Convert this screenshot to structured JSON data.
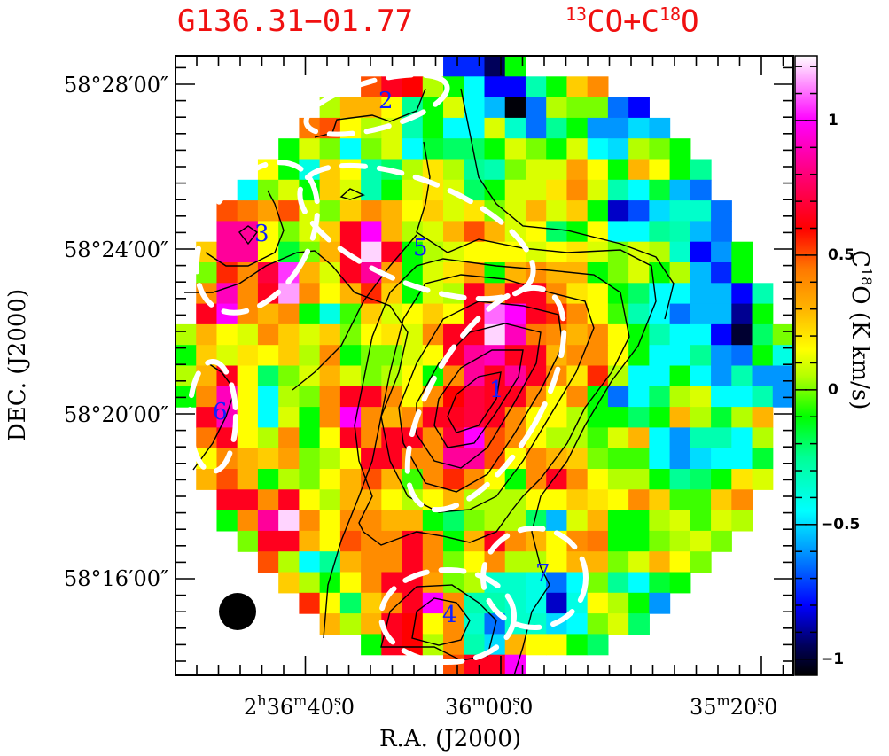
{
  "title": {
    "source": "G136.31−01.77",
    "line_base1": "13",
    "line_text1": "CO+C",
    "line_base2": "18",
    "line_text2": "O"
  },
  "colors": {
    "title": "#f01010",
    "region_label": "#1020ff",
    "region_outline": "#ffffff",
    "contour": "#000000",
    "beam": "#000000"
  },
  "chart_data": {
    "type": "heatmap",
    "title": "G136.31−01.77  13CO+C18O",
    "xlabel": "R.A. (J2000)",
    "ylabel": "DEC. (J2000)",
    "colorbar_label": {
      "base": "C",
      "sup": "18",
      "rest": "O  (K km/s)"
    },
    "x_ticks": [
      {
        "h": "2",
        "hsup": "h",
        "m": "36",
        "msup": "m",
        "s": "40",
        "ssup": "s",
        "frac": ".0"
      },
      {
        "h": "",
        "hsup": "",
        "m": "36",
        "msup": "m",
        "s": "00",
        "ssup": "s",
        "frac": ".0"
      },
      {
        "h": "",
        "hsup": "",
        "m": "35",
        "msup": "m",
        "s": "20",
        "ssup": "s",
        "frac": ".0"
      }
    ],
    "y_ticks": [
      "58°28′00″",
      "58°24′00″",
      "58°20′00″",
      "58°16′00″"
    ],
    "colorbar": {
      "range": [
        -1.06,
        1.24
      ],
      "ticks": [
        1,
        0.5,
        0,
        -0.5,
        -1
      ],
      "tick_labels": [
        "1",
        "0.5",
        "0",
        "−0.5",
        "−1"
      ]
    },
    "colormap": [
      [
        -1.06,
        "#000000"
      ],
      [
        -0.95,
        "#00005a"
      ],
      [
        -0.8,
        "#0000ff"
      ],
      [
        -0.6,
        "#0096ff"
      ],
      [
        -0.45,
        "#00ffff"
      ],
      [
        -0.25,
        "#00ff96"
      ],
      [
        -0.1,
        "#00ff00"
      ],
      [
        0.05,
        "#b4ff00"
      ],
      [
        0.15,
        "#ffff00"
      ],
      [
        0.3,
        "#ffb400"
      ],
      [
        0.45,
        "#ff7800"
      ],
      [
        0.6,
        "#ff0000"
      ],
      [
        0.8,
        "#ff0078"
      ],
      [
        1.0,
        "#ff00ff"
      ],
      [
        1.24,
        "#ffffff"
      ]
    ],
    "grid_size": [
      30,
      30
    ],
    "values": [
      [
        null,
        null,
        null,
        null,
        null,
        null,
        null,
        null,
        null,
        null,
        null,
        null,
        null,
        -0.75,
        -0.75,
        -0.95,
        -0.1,
        null,
        null,
        null,
        null,
        null,
        null,
        null,
        null,
        null,
        null,
        null,
        null,
        null
      ],
      [
        null,
        null,
        null,
        null,
        null,
        null,
        null,
        null,
        null,
        0.5,
        0.65,
        0.6,
        0.05,
        -0.1,
        -0.45,
        -0.8,
        -0.8,
        -0.3,
        -0.1,
        0.25,
        0.4,
        null,
        null,
        null,
        null,
        null,
        null,
        null,
        null,
        null
      ],
      [
        null,
        null,
        null,
        null,
        null,
        null,
        null,
        0.05,
        0.3,
        0.3,
        0.15,
        -0.25,
        -0.1,
        0.1,
        -0.45,
        -0.55,
        -1.05,
        -0.65,
        0.05,
        0.0,
        0.0,
        -0.65,
        -0.8,
        null,
        null,
        null,
        null,
        null,
        null,
        null
      ],
      [
        null,
        null,
        null,
        null,
        null,
        null,
        0.45,
        0.5,
        0.15,
        0.05,
        0.1,
        -0.3,
        -0.1,
        -0.45,
        -0.45,
        0.1,
        -0.35,
        -0.65,
        -0.25,
        -0.1,
        -0.6,
        -0.6,
        -0.5,
        -0.55,
        null,
        null,
        null,
        null,
        null,
        null
      ],
      [
        null,
        null,
        null,
        null,
        null,
        -0.1,
        0.1,
        0.0,
        -0.45,
        0.0,
        0.1,
        -0.45,
        -0.15,
        -0.2,
        -0.2,
        -0.1,
        0.1,
        0.0,
        -0.1,
        0.1,
        -0.45,
        -0.5,
        0.05,
        0.0,
        -0.1,
        null,
        null,
        null,
        null,
        null
      ],
      [
        null,
        null,
        null,
        null,
        0.15,
        -0.1,
        -0.4,
        0.25,
        0.15,
        -0.3,
        -0.2,
        0.05,
        0.2,
        0.05,
        -0.25,
        -0.3,
        0.0,
        0.1,
        0.1,
        0.35,
        0.15,
        -0.1,
        0.3,
        0.15,
        -0.1,
        -0.25,
        null,
        null,
        null,
        null
      ],
      [
        null,
        null,
        null,
        -0.45,
        0.0,
        0.1,
        -0.1,
        0.25,
        0.1,
        -0.3,
        -0.1,
        0.1,
        0.2,
        0.1,
        -0.2,
        -0.1,
        0.1,
        0.1,
        0.2,
        0.4,
        0.1,
        -0.3,
        -0.45,
        -0.15,
        -0.55,
        -0.65,
        null,
        null,
        null,
        null
      ],
      [
        null,
        null,
        0.5,
        0.45,
        0.35,
        0.5,
        0.1,
        0.0,
        0.25,
        0.4,
        0.3,
        0.15,
        0.25,
        0.1,
        0.2,
        0.0,
        0.1,
        0.3,
        0.1,
        0.25,
        -0.1,
        -0.85,
        -0.7,
        -0.5,
        -0.35,
        -0.35,
        -0.65,
        null,
        null,
        null
      ],
      [
        null,
        null,
        0.85,
        0.85,
        0.15,
        0.0,
        0.1,
        0.25,
        0.65,
        1.0,
        0.3,
        0.05,
        0.1,
        0.3,
        0.5,
        0.3,
        0.1,
        0.15,
        -0.2,
        -0.1,
        0.15,
        -0.45,
        -0.45,
        -0.25,
        -0.3,
        -0.55,
        -0.65,
        null,
        null,
        null
      ],
      [
        null,
        0.25,
        0.85,
        0.85,
        0.15,
        -0.15,
        0.0,
        0.3,
        0.65,
        1.2,
        0.65,
        -0.1,
        0.05,
        0.1,
        0.15,
        0.15,
        0.15,
        0.1,
        0.15,
        0.2,
        0.1,
        0.0,
        0.1,
        0.05,
        -0.35,
        -0.8,
        -0.6,
        -0.1,
        null,
        null
      ],
      [
        null,
        0.0,
        0.55,
        0.4,
        0.7,
        1.05,
        0.3,
        0.1,
        0.65,
        0.85,
        0.35,
        -0.1,
        0.1,
        0.2,
        0.35,
        -0.1,
        0.3,
        0.4,
        0.3,
        0.3,
        -0.1,
        0.0,
        0.1,
        -0.1,
        0.05,
        -0.55,
        -0.75,
        -0.1,
        null,
        null
      ],
      [
        null,
        0.4,
        0.9,
        0.4,
        0.65,
        1.15,
        0.4,
        0.15,
        0.3,
        0.55,
        0.25,
        -0.1,
        0.1,
        0.05,
        0.65,
        0.4,
        0.65,
        0.65,
        0.4,
        0.2,
        0.15,
        -0.1,
        -0.2,
        -0.45,
        -0.45,
        -0.55,
        -0.55,
        -0.8,
        -0.3,
        null
      ],
      [
        null,
        0.65,
        1.0,
        0.4,
        0.3,
        0.4,
        -0.1,
        -0.4,
        -0.05,
        0.25,
        0.1,
        0.15,
        0.25,
        0.15,
        0.65,
        1.1,
        1.0,
        0.65,
        0.55,
        0.4,
        0.15,
        -0.05,
        -0.3,
        -0.45,
        -0.65,
        -0.55,
        -0.55,
        -0.9,
        -0.1,
        null
      ],
      [
        0.05,
        0.3,
        0.15,
        0.1,
        0.4,
        0.25,
        0.1,
        0.25,
        0.0,
        0.15,
        0.2,
        0.1,
        0.4,
        0.65,
        0.65,
        1.2,
        0.9,
        0.45,
        0.4,
        0.3,
        0.4,
        0.15,
        -0.1,
        -0.3,
        -0.45,
        -0.45,
        -0.8,
        -1.0,
        -0.2,
        0.0
      ],
      [
        -0.1,
        0.25,
        0.1,
        0.2,
        0.15,
        0.25,
        0.05,
        0.4,
        -0.1,
        0.0,
        0.0,
        0.1,
        0.15,
        0.65,
        0.85,
        0.9,
        0.65,
        0.65,
        0.3,
        0.4,
        0.4,
        0.15,
        -0.1,
        -0.45,
        -0.45,
        -0.25,
        -0.6,
        -0.65,
        -0.1,
        -0.4
      ],
      [
        0.05,
        0.3,
        0.65,
        0.15,
        -0.2,
        0.0,
        0.1,
        0.3,
        0.1,
        0.0,
        0.05,
        0.15,
        -0.1,
        0.4,
        0.85,
        0.65,
        0.85,
        0.65,
        0.4,
        0.2,
        0.55,
        0.05,
        -0.45,
        -0.45,
        -0.1,
        -0.45,
        -0.6,
        -0.3,
        -0.6,
        -0.6
      ],
      [
        -0.1,
        0.4,
        0.9,
        0.15,
        -0.45,
        0.05,
        0.0,
        0.4,
        0.65,
        0.65,
        0.4,
        0.15,
        0.4,
        0.6,
        0.7,
        0.65,
        0.65,
        0.4,
        0.15,
        0.4,
        -0.1,
        -0.65,
        -0.45,
        -0.2,
        0.05,
        0.1,
        -0.45,
        -0.45,
        -0.3,
        -0.6
      ],
      [
        null,
        0.65,
        0.9,
        0.15,
        -0.45,
        0.1,
        -0.1,
        0.4,
        1.0,
        0.4,
        0.3,
        0.4,
        0.65,
        0.65,
        0.7,
        0.65,
        0.4,
        0.15,
        0.15,
        0.05,
        -0.1,
        -0.1,
        -0.2,
        -0.1,
        0.3,
        0.05,
        -0.15,
        0.05,
        0.3,
        null
      ],
      [
        null,
        0.45,
        0.65,
        0.15,
        0.05,
        0.4,
        -0.1,
        0.15,
        0.65,
        0.4,
        0.65,
        0.65,
        0.4,
        0.7,
        1.0,
        0.5,
        0.4,
        0.15,
        0.05,
        0.05,
        -0.05,
        0.1,
        0.3,
        -0.45,
        -0.6,
        -0.3,
        -0.3,
        -0.45,
        0.05,
        null
      ],
      [
        null,
        0.15,
        0.4,
        0.3,
        0.25,
        0.35,
        0.0,
        0.05,
        0.15,
        0.65,
        0.65,
        0.4,
        0.4,
        0.85,
        0.85,
        0.5,
        0.15,
        0.4,
        0.3,
        0.25,
        0.0,
        -0.05,
        -0.05,
        -0.45,
        -0.6,
        -0.5,
        -0.45,
        -0.45,
        -0.15,
        null
      ],
      [
        null,
        0.3,
        0.5,
        0.3,
        -0.1,
        0.05,
        0.0,
        0.15,
        0.3,
        0.5,
        0.3,
        -0.05,
        0.4,
        0.55,
        0.4,
        0.15,
        -0.1,
        0.4,
        0.65,
        0.4,
        0.15,
        0.05,
        0.05,
        -0.1,
        -0.25,
        -0.2,
        -0.1,
        0.2,
        0.1,
        null
      ],
      [
        null,
        null,
        0.65,
        0.65,
        0.4,
        0.65,
        0.15,
        0.05,
        0.3,
        0.3,
        0.15,
        0.05,
        0.15,
        0.3,
        0.05,
        0.05,
        0.05,
        0.15,
        0.15,
        0.25,
        0.2,
        0.15,
        0.4,
        0.25,
        -0.05,
        -0.05,
        0.25,
        0.4,
        null,
        null
      ],
      [
        null,
        null,
        -0.1,
        0.4,
        0.85,
        1.2,
        0.4,
        0.15,
        0.4,
        0.4,
        0.3,
        0.3,
        -0.1,
        -0.2,
        0.0,
        0.05,
        0.05,
        -0.2,
        -0.55,
        0.1,
        0.3,
        -0.1,
        -0.1,
        0.05,
        0.1,
        -0.05,
        0.1,
        0.05,
        null,
        null
      ],
      [
        null,
        null,
        null,
        0.0,
        0.65,
        0.65,
        0.3,
        0.15,
        0.5,
        0.4,
        0.4,
        0.65,
        0.4,
        -0.1,
        0.3,
        0.65,
        0.4,
        0.3,
        0.15,
        0.4,
        0.45,
        -0.1,
        -0.1,
        0.0,
        0.05,
        0.1,
        0.0,
        null,
        null,
        null
      ],
      [
        null,
        null,
        null,
        null,
        0.5,
        0.05,
        -0.45,
        -0.25,
        0.3,
        0.4,
        0.4,
        0.65,
        0.4,
        0.0,
        0.15,
        0.4,
        0.05,
        0.05,
        0.15,
        0.3,
        0.3,
        0.0,
        0.1,
        0.3,
        0.15,
        0.0,
        null,
        null,
        null,
        null
      ],
      [
        null,
        null,
        null,
        null,
        null,
        0.25,
        0.05,
        -0.1,
        0.15,
        0.4,
        0.65,
        0.65,
        0.35,
        0.0,
        0.05,
        -0.35,
        -0.35,
        -0.4,
        -0.65,
        -0.45,
        0.0,
        -0.25,
        -0.45,
        -0.15,
        -0.1,
        null,
        null,
        null,
        null,
        null
      ],
      [
        null,
        null,
        null,
        null,
        null,
        null,
        0.55,
        0.15,
        -0.2,
        0.25,
        0.4,
        0.65,
        1.0,
        0.4,
        -0.3,
        -0.3,
        -0.35,
        -0.4,
        -0.85,
        -0.4,
        0.15,
        0.05,
        -0.1,
        -0.6,
        null,
        null,
        null,
        null,
        null,
        null
      ],
      [
        null,
        null,
        null,
        null,
        null,
        null,
        null,
        0.3,
        0.05,
        0.3,
        0.65,
        0.6,
        0.15,
        0.4,
        -0.35,
        -0.65,
        -0.35,
        -0.35,
        -0.5,
        -0.45,
        0.0,
        0.1,
        -0.2,
        null,
        null,
        null,
        null,
        null,
        null,
        null
      ],
      [
        null,
        null,
        null,
        null,
        null,
        null,
        null,
        null,
        null,
        -0.1,
        0.65,
        0.6,
        0.05,
        0.4,
        -0.3,
        -0.5,
        0.3,
        0.15,
        0.15,
        -0.1,
        -0.2,
        null,
        null,
        null,
        null,
        null,
        null,
        null,
        null,
        null
      ],
      [
        null,
        null,
        null,
        null,
        null,
        null,
        null,
        null,
        null,
        null,
        null,
        null,
        null,
        0.5,
        0.65,
        0.65,
        1.0,
        null,
        null,
        null,
        null,
        null,
        null,
        null,
        null,
        null,
        null,
        null,
        null,
        null
      ]
    ],
    "regions": [
      "1",
      "2",
      "3",
      "4",
      "5",
      "6",
      "7"
    ]
  }
}
